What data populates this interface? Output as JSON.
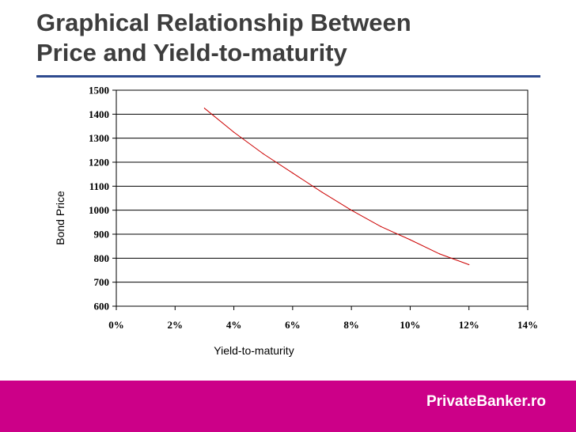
{
  "slide": {
    "title_line1": "Graphical Relationship Between",
    "title_line2": "Price and Yield-to-maturity",
    "brand": "PrivateBanker.ro"
  },
  "colors": {
    "title": "#3d3d3d",
    "rule": "#2e4a8f",
    "series": "#cc0000",
    "footer": "#cc0088"
  },
  "chart_data": {
    "type": "line",
    "xlabel": "Yield-to-maturity",
    "ylabel": "Bond Price",
    "xlim": [
      0,
      14
    ],
    "ylim": [
      600,
      1500
    ],
    "x_ticks": [
      0,
      2,
      4,
      6,
      8,
      10,
      12,
      14
    ],
    "x_tick_labels": [
      "0%",
      "2%",
      "4%",
      "6%",
      "8%",
      "10%",
      "12%",
      "14%"
    ],
    "y_ticks": [
      600,
      700,
      800,
      900,
      1000,
      1100,
      1200,
      1300,
      1400,
      1500
    ],
    "y_tick_labels": [
      "600",
      "700",
      "800",
      "900",
      "1000",
      "1100",
      "1200",
      "1300",
      "1400",
      "1500"
    ],
    "grid": "horizontal",
    "series": [
      {
        "x": [
          3,
          4,
          5,
          6,
          7,
          8,
          9,
          10,
          11,
          12
        ],
        "y": [
          1425,
          1325,
          1235,
          1155,
          1075,
          1000,
          932,
          877,
          818,
          773
        ]
      }
    ]
  }
}
